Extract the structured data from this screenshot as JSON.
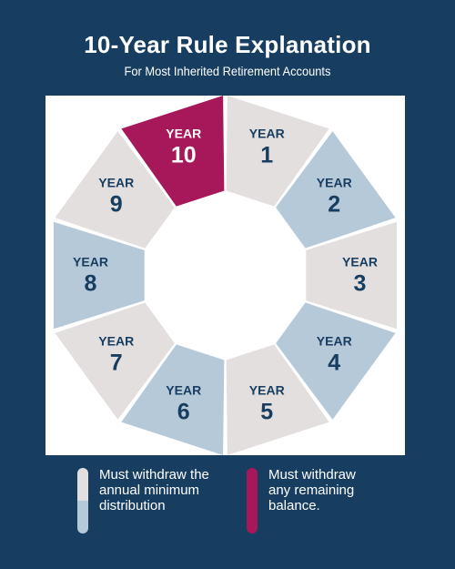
{
  "header": {
    "title": "10-Year Rule Explanation",
    "subtitle": "For Most Inherited Retirement Accounts"
  },
  "wheel": {
    "segments": [
      {
        "prefix": "YEAR",
        "number": "1",
        "kind": "light"
      },
      {
        "prefix": "YEAR",
        "number": "2",
        "kind": "blue"
      },
      {
        "prefix": "YEAR",
        "number": "3",
        "kind": "light"
      },
      {
        "prefix": "YEAR",
        "number": "4",
        "kind": "blue"
      },
      {
        "prefix": "YEAR",
        "number": "5",
        "kind": "light"
      },
      {
        "prefix": "YEAR",
        "number": "6",
        "kind": "blue"
      },
      {
        "prefix": "YEAR",
        "number": "7",
        "kind": "light"
      },
      {
        "prefix": "YEAR",
        "number": "8",
        "kind": "blue"
      },
      {
        "prefix": "YEAR",
        "number": "9",
        "kind": "light"
      },
      {
        "prefix": "YEAR",
        "number": "10",
        "kind": "red"
      }
    ]
  },
  "legend": {
    "annual": {
      "lines": [
        "Must withdraw the",
        "annual minimum",
        "distribution"
      ]
    },
    "remaining": {
      "lines": [
        "Must withdraw",
        "any remaining",
        "balance."
      ]
    }
  },
  "colors": {
    "background": "#173e60",
    "light": "#e4dfdf",
    "blue": "#b6c9d9",
    "red": "#a6185a",
    "label_dark": "#173e60",
    "label_light": "#ffffff"
  }
}
